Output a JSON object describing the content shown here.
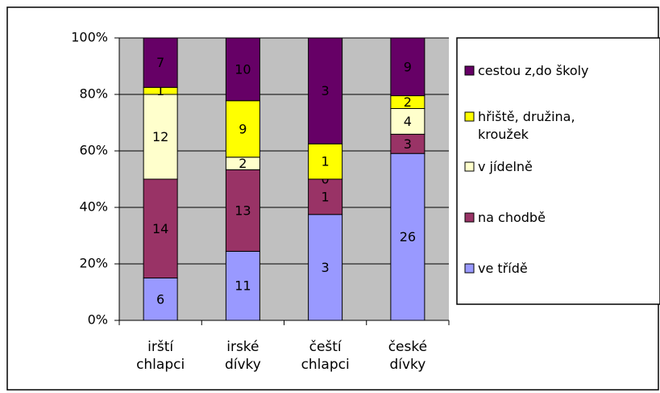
{
  "chart_data": {
    "type": "bar",
    "stacked": "percent",
    "categories": [
      "irští chlapci",
      "irské dívky",
      "čeští chlapci",
      "české dívky"
    ],
    "series": [
      {
        "name": "ve třídě",
        "color": "#9999ff",
        "values": [
          6,
          11,
          3,
          26
        ]
      },
      {
        "name": "na chodbě",
        "color": "#993366",
        "values": [
          14,
          13,
          1,
          3
        ]
      },
      {
        "name": "v jídelně",
        "color": "#ffffcc",
        "values": [
          12,
          2,
          0,
          4
        ]
      },
      {
        "name": "hřiště, družina, kroužek",
        "color": "#ffff00",
        "values": [
          1,
          9,
          1,
          2
        ]
      },
      {
        "name": "cestou z,do školy",
        "color": "#660066",
        "values": [
          7,
          10,
          3,
          9
        ]
      }
    ],
    "ylim": [
      0,
      100
    ],
    "yticks": [
      {
        "value": 0,
        "label": "0%"
      },
      {
        "value": 20,
        "label": "20%"
      },
      {
        "value": 40,
        "label": "40%"
      },
      {
        "value": 60,
        "label": "60%"
      },
      {
        "value": 80,
        "label": "80%"
      },
      {
        "value": 100,
        "label": "100%"
      }
    ],
    "grid": true,
    "legend": "right",
    "plot_background": "#c0c0c0"
  }
}
